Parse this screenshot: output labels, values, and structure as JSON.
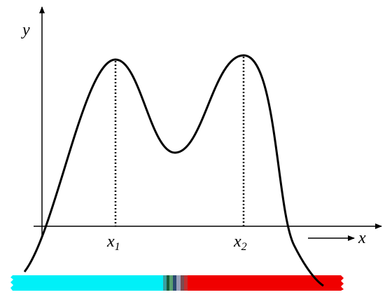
{
  "axes": {
    "y_label": "y",
    "x_label": "x"
  },
  "markers": [
    {
      "label": "x",
      "subscript": "1"
    },
    {
      "label": "x",
      "subscript": "2"
    }
  ]
}
